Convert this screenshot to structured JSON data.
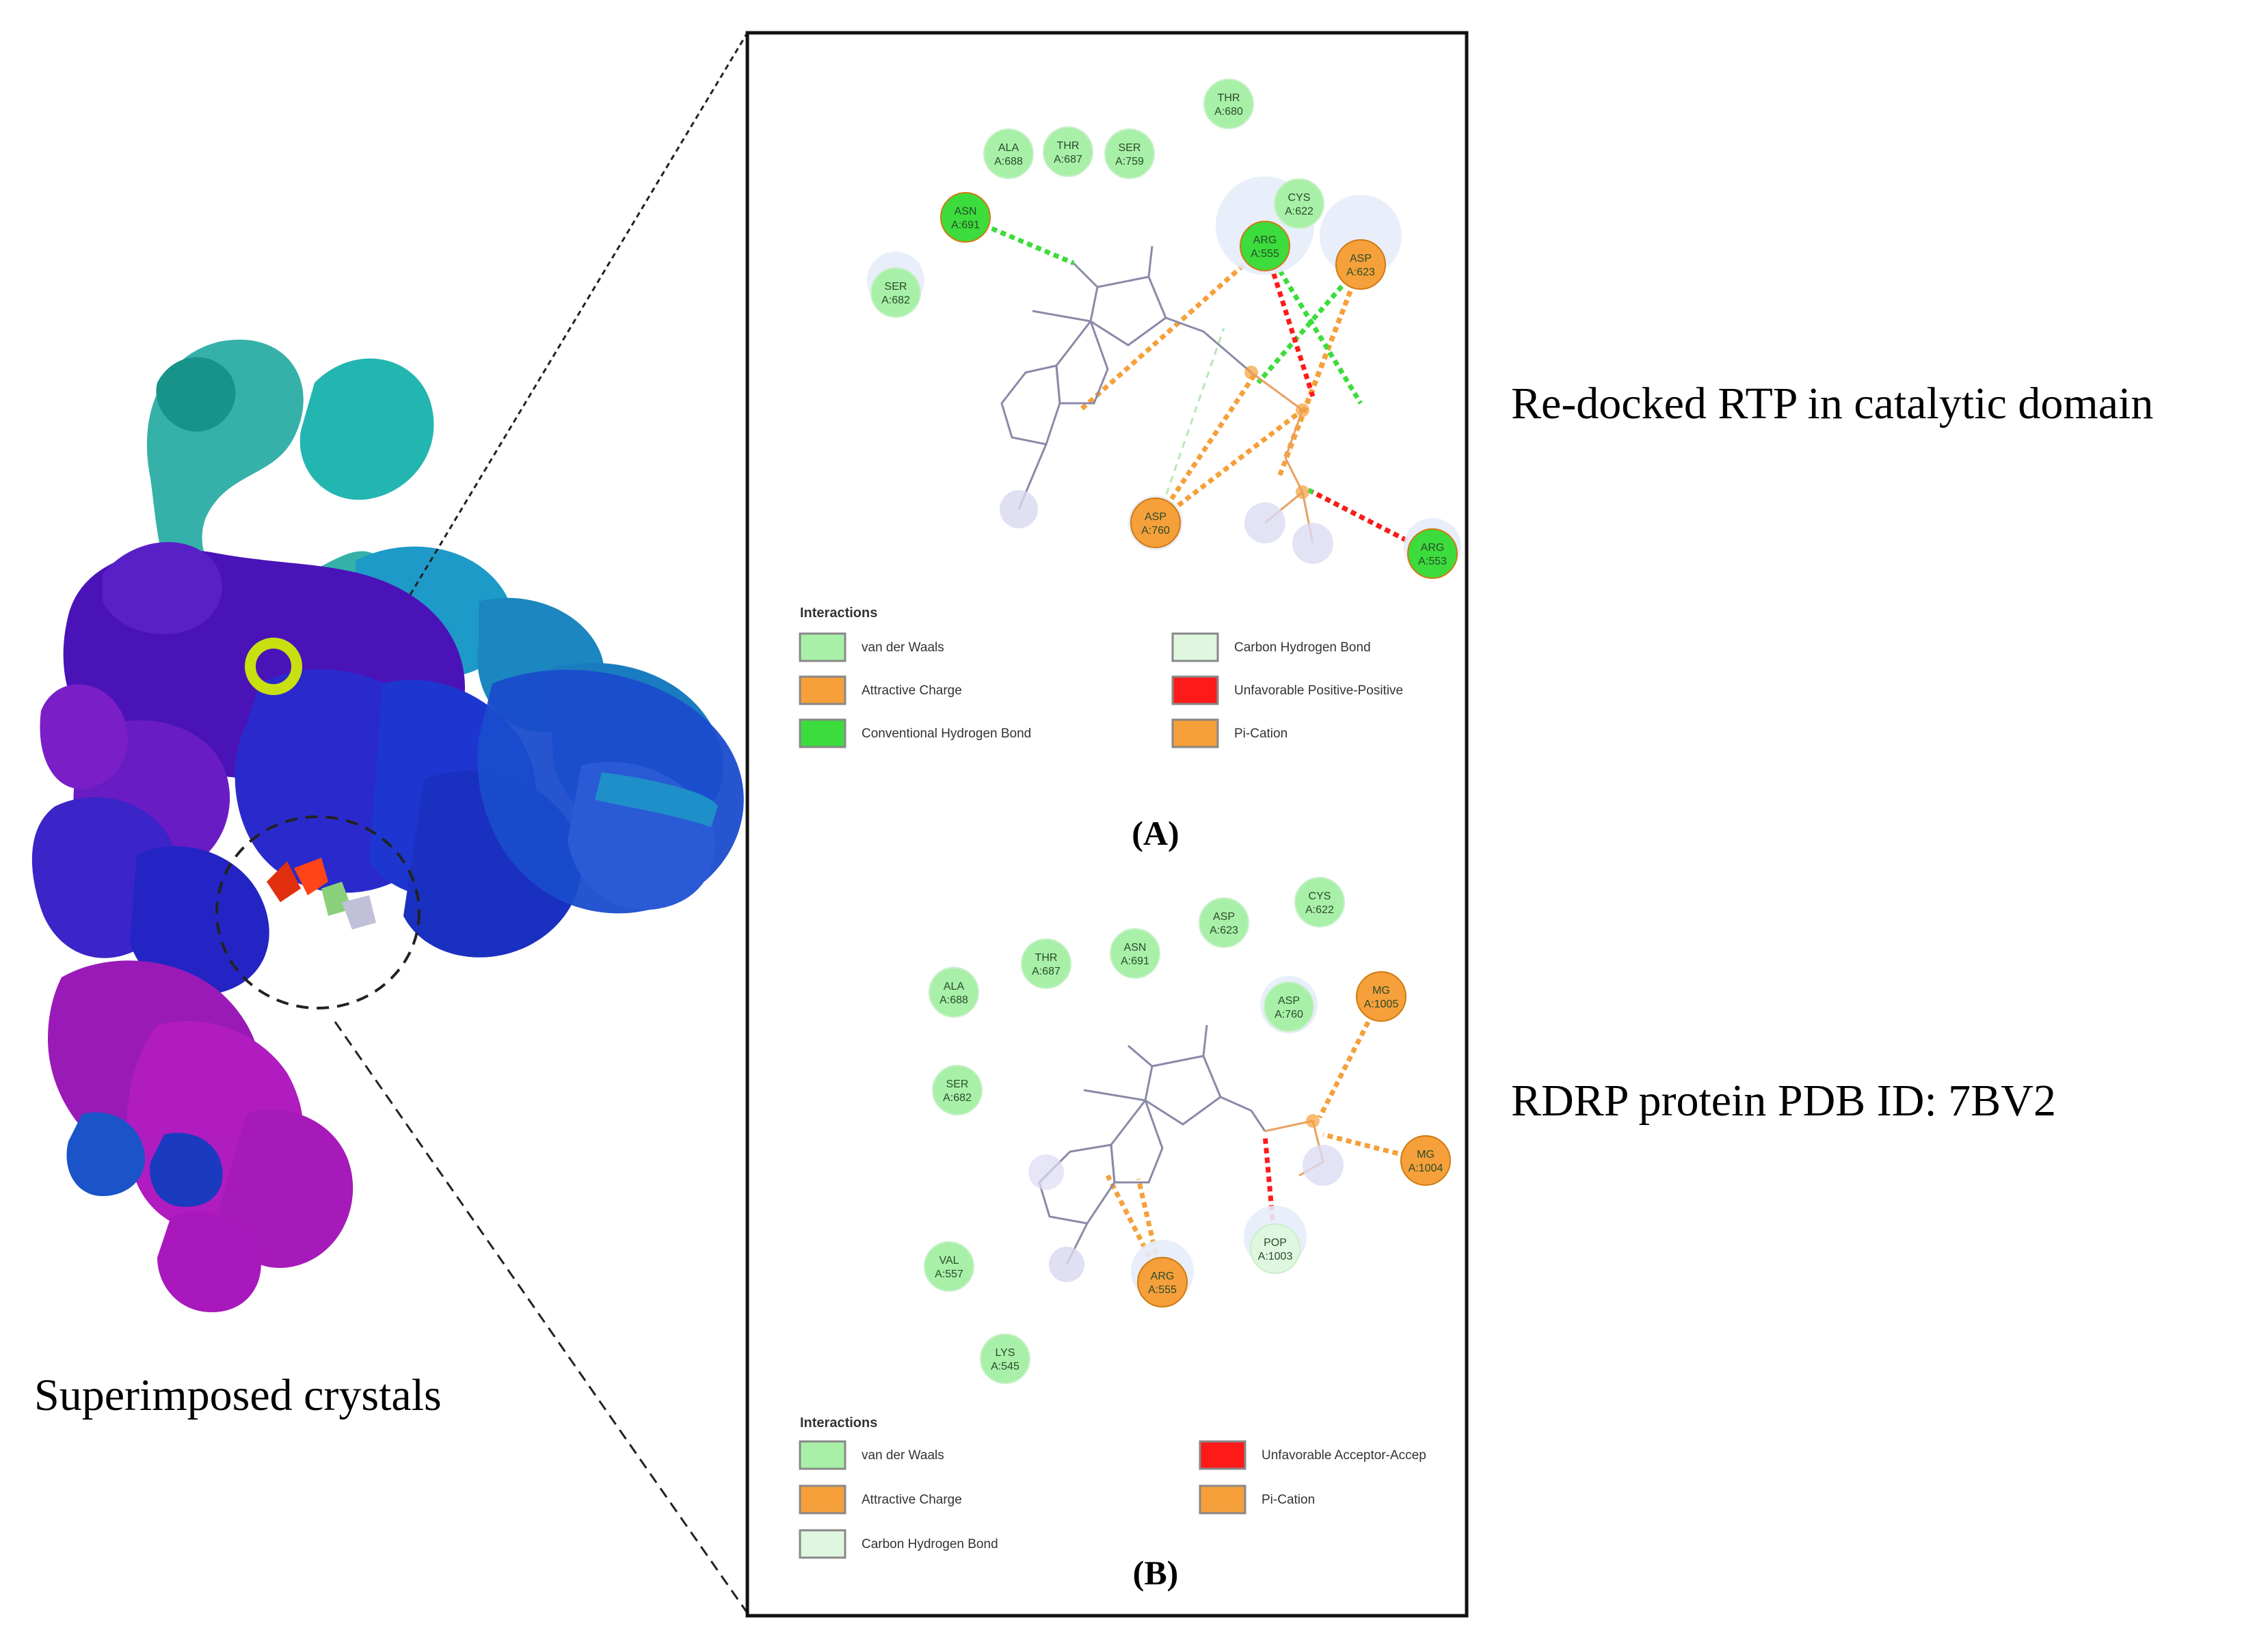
{
  "labels": {
    "left_caption": "Superimposed crystals",
    "right_caption_a": "Re-docked RTP in catalytic domain",
    "right_caption_b": "RDRP protein PDB ID: 7BV2",
    "panel_a_label": "(A)",
    "panel_b_label": "(B)"
  },
  "colors": {
    "van_der_waals": "#a8f0a8",
    "attractive_charge": "#f5a03a",
    "conventional_hbond": "#3cdc3c",
    "carbon_hbond": "#dff7df",
    "unfavorable": "#ff1a1a",
    "pi_cation": "#f5a03a",
    "ligand": "#9a9ac0"
  },
  "panel_a": {
    "legend_title": "Interactions",
    "legend": [
      {
        "label": "van der Waals",
        "type": "vdw"
      },
      {
        "label": "Attractive Charge",
        "type": "charge"
      },
      {
        "label": "Conventional Hydrogen Bond",
        "type": "hbond"
      },
      {
        "label": "Carbon Hydrogen Bond",
        "type": "chbond"
      },
      {
        "label": "Unfavorable Positive-Positive",
        "type": "unfav"
      },
      {
        "label": "Pi-Cation",
        "type": "pication"
      }
    ],
    "residues": [
      {
        "name": "ALA",
        "id": "A:688",
        "type": "vdw"
      },
      {
        "name": "THR",
        "id": "A:687",
        "type": "vdw"
      },
      {
        "name": "SER",
        "id": "A:759",
        "type": "vdw"
      },
      {
        "name": "THR",
        "id": "A:680",
        "type": "vdw"
      },
      {
        "name": "CYS",
        "id": "A:622",
        "type": "vdw"
      },
      {
        "name": "ASN",
        "id": "A:691",
        "type": "hbond"
      },
      {
        "name": "ARG",
        "id": "A:555",
        "type": "hbond"
      },
      {
        "name": "ASP",
        "id": "A:623",
        "type": "charge"
      },
      {
        "name": "SER",
        "id": "A:682",
        "type": "vdw"
      },
      {
        "name": "ASP",
        "id": "A:760",
        "type": "charge"
      },
      {
        "name": "ARG",
        "id": "A:553",
        "type": "hbond"
      }
    ]
  },
  "panel_b": {
    "legend_title": "Interactions",
    "legend": [
      {
        "label": "van der Waals",
        "type": "vdw"
      },
      {
        "label": "Attractive Charge",
        "type": "charge"
      },
      {
        "label": "Carbon Hydrogen Bond",
        "type": "chbond"
      },
      {
        "label": "Unfavorable Acceptor-Accep",
        "type": "unfav"
      },
      {
        "label": "Pi-Cation",
        "type": "pication"
      }
    ],
    "residues": [
      {
        "name": "CYS",
        "id": "A:622",
        "type": "vdw"
      },
      {
        "name": "ASP",
        "id": "A:623",
        "type": "vdw"
      },
      {
        "name": "ASN",
        "id": "A:691",
        "type": "vdw"
      },
      {
        "name": "THR",
        "id": "A:687",
        "type": "vdw"
      },
      {
        "name": "ALA",
        "id": "A:688",
        "type": "vdw"
      },
      {
        "name": "ASP",
        "id": "A:760",
        "type": "vdw"
      },
      {
        "name": "MG",
        "id": "A:1005",
        "type": "charge"
      },
      {
        "name": "SER",
        "id": "A:682",
        "type": "vdw"
      },
      {
        "name": "MG",
        "id": "A:1004",
        "type": "charge"
      },
      {
        "name": "POP",
        "id": "A:1003",
        "type": "chbond"
      },
      {
        "name": "VAL",
        "id": "A:557",
        "type": "vdw"
      },
      {
        "name": "ARG",
        "id": "A:555",
        "type": "charge"
      },
      {
        "name": "LYS",
        "id": "A:545",
        "type": "vdw"
      }
    ]
  }
}
